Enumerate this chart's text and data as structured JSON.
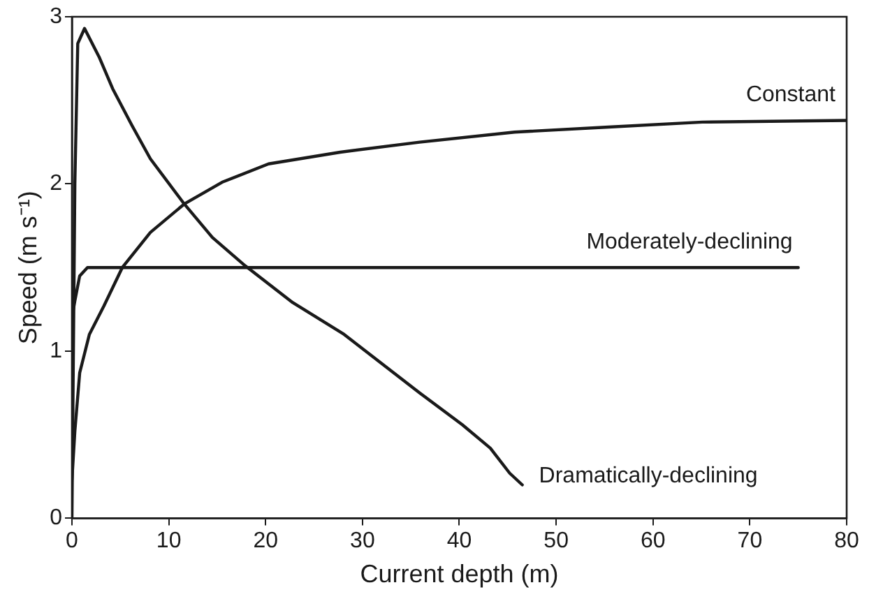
{
  "chart_data": {
    "type": "line",
    "xlabel": "Current depth (m)",
    "ylabel": "Speed (m s⁻¹)",
    "xlim": [
      0,
      80
    ],
    "xticks": [
      0,
      10,
      20,
      30,
      40,
      50,
      60,
      70,
      80
    ],
    "ylim": [
      0,
      3
    ],
    "yticks": [
      0,
      1,
      2,
      3
    ],
    "grid": false,
    "legend": false,
    "marker": "none",
    "line_style": "solid",
    "series": [
      {
        "name": "Constant",
        "color": "#1a1a1a",
        "x": [
          0,
          0.3,
          0.8,
          1.8,
          3.3,
          5.2,
          8.1,
          11.6,
          15.5,
          20.3,
          27.7,
          35.9,
          45.7,
          55.4,
          65.1,
          80
        ],
        "values": [
          0.23,
          0.52,
          0.87,
          1.1,
          1.27,
          1.5,
          1.71,
          1.88,
          2.01,
          2.12,
          2.19,
          2.25,
          2.31,
          2.34,
          2.37,
          2.38
        ]
      },
      {
        "name": "Moderately-declining",
        "color": "#1a1a1a",
        "x": [
          0,
          0.3,
          0.8,
          1.6,
          75
        ],
        "values": [
          1.2,
          1.3,
          1.45,
          1.5,
          1.5
        ]
      },
      {
        "name": "Dramatically-declining",
        "color": "#1a1a1a",
        "x": [
          0,
          0.3,
          0.6,
          1.3,
          2.8,
          4.2,
          6.2,
          8.1,
          11.6,
          14.5,
          17.9,
          22.8,
          28.1,
          35.9,
          40.3,
          43.2,
          45.2,
          46.5
        ],
        "values": [
          0,
          2.0,
          2.84,
          2.93,
          2.76,
          2.57,
          2.35,
          2.15,
          1.88,
          1.68,
          1.51,
          1.29,
          1.1,
          0.75,
          0.56,
          0.42,
          0.27,
          0.2
        ]
      }
    ]
  }
}
